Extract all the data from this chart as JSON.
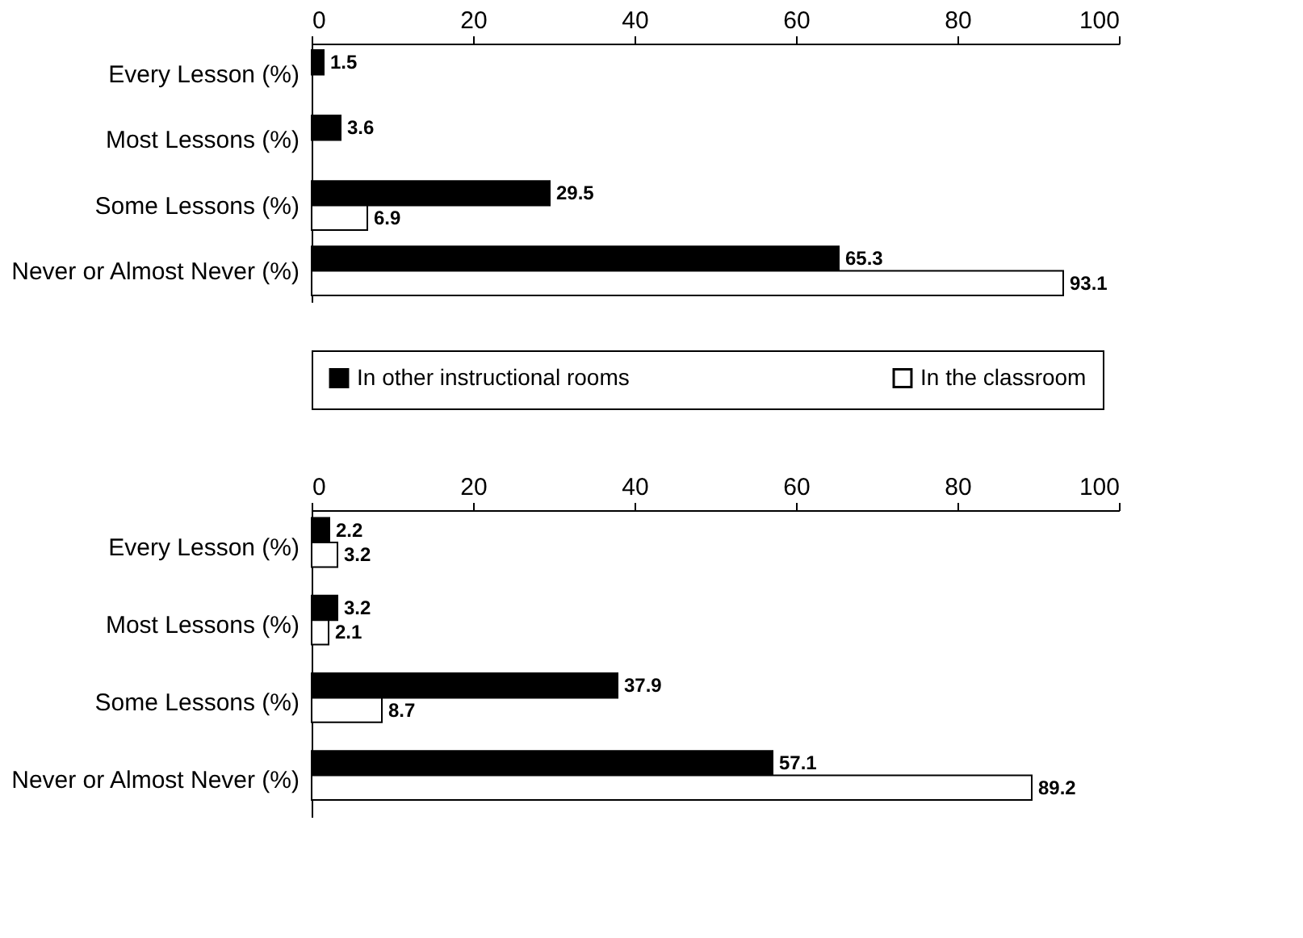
{
  "chart_data": [
    {
      "type": "bar",
      "orientation": "horizontal",
      "categories": [
        "Every Lesson (%)",
        "Most Lessons (%)",
        "Some Lessons (%)",
        "Never or Almost Never (%)"
      ],
      "series": [
        {
          "name": "In other instructional rooms",
          "color": "#000000",
          "values": [
            1.5,
            3.6,
            29.5,
            65.3
          ]
        },
        {
          "name": "In the classroom",
          "color": "#ffffff",
          "values": [
            null,
            null,
            6.9,
            93.1
          ]
        }
      ],
      "xlim": [
        0,
        100
      ],
      "xticks": [
        0,
        20,
        40,
        60,
        80,
        100
      ],
      "data_labels": true,
      "legend": "bottom",
      "grid": false
    },
    {
      "type": "bar",
      "orientation": "horizontal",
      "categories": [
        "Every Lesson (%)",
        "Most Lessons (%)",
        "Some Lessons (%)",
        "Never or Almost Never (%)"
      ],
      "series": [
        {
          "color": "#000000",
          "values": [
            2.2,
            3.2,
            37.9,
            57.1
          ]
        },
        {
          "color": "#ffffff",
          "values": [
            3.2,
            2.1,
            8.7,
            89.2
          ]
        }
      ],
      "xlim": [
        0,
        100
      ],
      "xticks": [
        0,
        20,
        40,
        60,
        80,
        100
      ],
      "data_labels": true,
      "legend": false,
      "grid": false
    }
  ]
}
